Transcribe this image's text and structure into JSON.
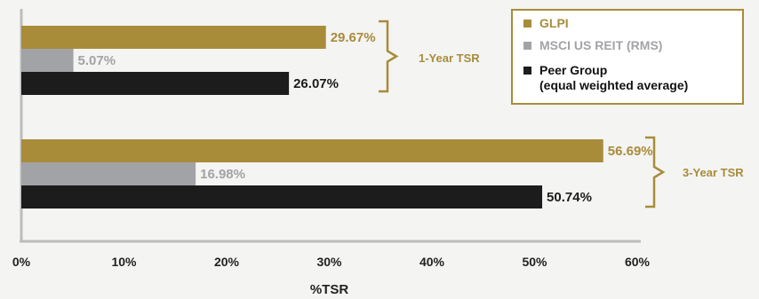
{
  "chart_data": {
    "type": "bar",
    "orientation": "horizontal",
    "categories": [
      "1-Year TSR",
      "3-Year TSR"
    ],
    "series": [
      {
        "name": "GLPI",
        "values": [
          29.67,
          56.69
        ],
        "labels": [
          "29.67%",
          "56.69%"
        ],
        "color": "#a88c3a",
        "label_color": "#a88c3a"
      },
      {
        "name": "MSCI US REIT (RMS)",
        "values": [
          5.07,
          16.98
        ],
        "labels": [
          "5.07%",
          "16.98%"
        ],
        "color": "#a2a3a6",
        "label_color": "#a2a3a6"
      },
      {
        "name": "Peer Group\n(equal weighted average)",
        "values": [
          26.07,
          50.74
        ],
        "labels": [
          "26.07%",
          "50.74%"
        ],
        "color": "#1c1c1c",
        "label_color": "#1c1c1c"
      }
    ],
    "xlabel": "%TSR",
    "xlim": [
      0,
      60
    ],
    "xticks": [
      "0%",
      "10%",
      "20%",
      "30%",
      "40%",
      "50%",
      "60%"
    ],
    "grid": false,
    "legend_position": "top-right",
    "group_label_color": "#a88c3a",
    "bracket_color": "#a88c3a",
    "axis_color": "#bdbdbd"
  }
}
